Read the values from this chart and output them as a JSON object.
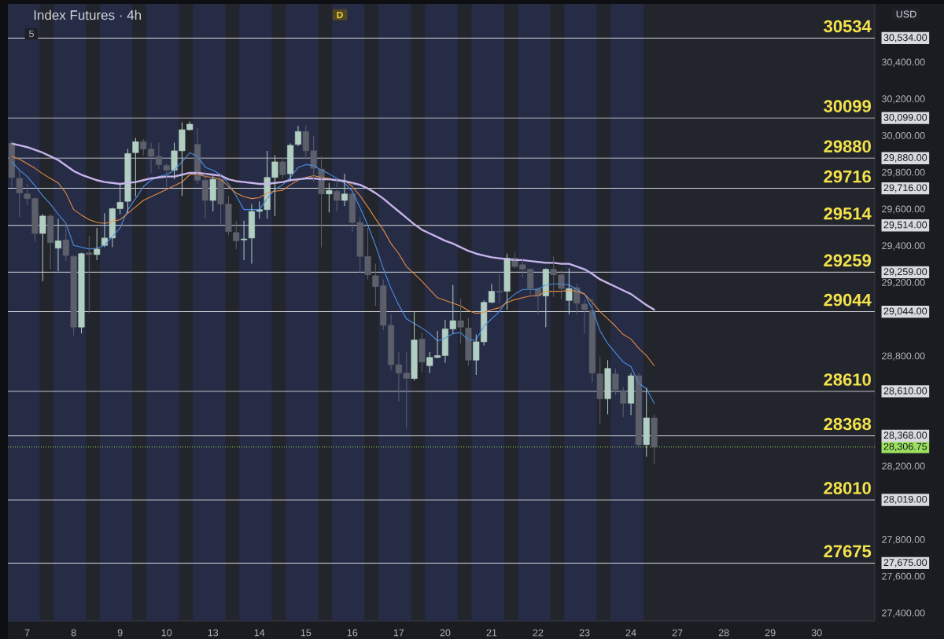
{
  "chart_data": {
    "type": "candlestick",
    "title": "Index Futures · 4h",
    "categories": [
      null,
      null,
      "7",
      null,
      null,
      null,
      null,
      null,
      "8",
      null,
      null,
      null,
      null,
      null,
      "9",
      null,
      null,
      null,
      null,
      null,
      "10",
      null,
      null,
      null,
      null,
      null,
      "13",
      null,
      null,
      null,
      null,
      null,
      "14",
      null,
      null,
      null,
      null,
      null,
      "15",
      null,
      null,
      null,
      null,
      null,
      "16",
      null,
      null,
      null,
      null,
      null,
      "17",
      null,
      null,
      null,
      null,
      null,
      "20",
      null,
      null,
      null,
      null,
      null,
      "21",
      null,
      null,
      null,
      null,
      null,
      "22",
      null,
      null,
      null,
      null,
      null,
      "23",
      null,
      null,
      null,
      null,
      null,
      "24",
      null,
      null,
      null,
      null,
      null,
      "27",
      null,
      null,
      null,
      null,
      null,
      "28",
      null,
      null,
      null,
      null,
      null,
      "29",
      null,
      null,
      null,
      null,
      null,
      "30",
      null,
      null,
      null,
      null,
      null,
      null,
      null
    ],
    "ohlc": [
      [
        29960,
        29970,
        29720,
        29775
      ],
      [
        29770,
        29815,
        29560,
        29690
      ],
      [
        29685,
        29740,
        29625,
        29660
      ],
      [
        29660,
        29665,
        29425,
        29470
      ],
      [
        29470,
        29575,
        29210,
        29565
      ],
      [
        29565,
        29575,
        29275,
        29420
      ],
      [
        29390,
        29550,
        29265,
        29430
      ],
      [
        29435,
        29530,
        29320,
        29350
      ],
      [
        29345,
        29350,
        28915,
        28960
      ],
      [
        28960,
        29365,
        28925,
        29360
      ],
      [
        29365,
        29455,
        29035,
        29355
      ],
      [
        29355,
        29500,
        29325,
        29385
      ],
      [
        29405,
        29580,
        29395,
        29445
      ],
      [
        29445,
        29610,
        29395,
        29605
      ],
      [
        29605,
        29745,
        29575,
        29640
      ],
      [
        29645,
        29930,
        29580,
        29905
      ],
      [
        29910,
        29990,
        29670,
        29970
      ],
      [
        29970,
        29985,
        29895,
        29930
      ],
      [
        29930,
        29965,
        29800,
        29890
      ],
      [
        29890,
        29965,
        29820,
        29845
      ],
      [
        29840,
        29850,
        29715,
        29815
      ],
      [
        29815,
        29965,
        29765,
        29920
      ],
      [
        29920,
        30075,
        29675,
        30035
      ],
      [
        30035,
        30080,
        30030,
        30065
      ],
      [
        29955,
        30045,
        29740,
        29760
      ],
      [
        29760,
        29810,
        29550,
        29650
      ],
      [
        29650,
        29790,
        29590,
        29765
      ],
      [
        29765,
        29795,
        29515,
        29630
      ],
      [
        29630,
        29675,
        29460,
        29480
      ],
      [
        29475,
        29540,
        29385,
        29430
      ],
      [
        29435,
        29540,
        29325,
        29440
      ],
      [
        29445,
        29630,
        29305,
        29590
      ],
      [
        29590,
        29645,
        29550,
        29600
      ],
      [
        29600,
        29920,
        29550,
        29775
      ],
      [
        29775,
        29895,
        29565,
        29860
      ],
      [
        29860,
        29880,
        29765,
        29790
      ],
      [
        29795,
        29960,
        29765,
        29950
      ],
      [
        29955,
        30055,
        29945,
        30025
      ],
      [
        30025,
        30060,
        29875,
        29920
      ],
      [
        29920,
        30000,
        29750,
        29825
      ],
      [
        29820,
        29890,
        29395,
        29685
      ],
      [
        29685,
        29745,
        29585,
        29705
      ],
      [
        29700,
        29765,
        29590,
        29650
      ],
      [
        29650,
        29795,
        29620,
        29685
      ],
      [
        29685,
        29745,
        29480,
        29530
      ],
      [
        29530,
        29560,
        29255,
        29345
      ],
      [
        29345,
        29500,
        29220,
        29245
      ],
      [
        29240,
        29305,
        29075,
        29180
      ],
      [
        29185,
        29220,
        28945,
        28970
      ],
      [
        28970,
        29030,
        28725,
        28755
      ],
      [
        28755,
        28825,
        28555,
        28710
      ],
      [
        28710,
        28825,
        28410,
        28680
      ],
      [
        28680,
        29045,
        28670,
        28890
      ],
      [
        28895,
        28930,
        28715,
        28770
      ],
      [
        28750,
        28825,
        28710,
        28795
      ],
      [
        28795,
        28940,
        28790,
        28805
      ],
      [
        28805,
        29000,
        28765,
        28950
      ],
      [
        28950,
        29190,
        28925,
        28995
      ],
      [
        28995,
        29115,
        28870,
        28960
      ],
      [
        28955,
        29010,
        28750,
        28780
      ],
      [
        28780,
        28920,
        28700,
        28880
      ],
      [
        28880,
        29105,
        28860,
        29095
      ],
      [
        29095,
        29195,
        29090,
        29155
      ],
      [
        29155,
        29250,
        29090,
        29150
      ],
      [
        29155,
        29360,
        29055,
        29335
      ],
      [
        29335,
        29365,
        29280,
        29290
      ],
      [
        29300,
        29330,
        29230,
        29275
      ],
      [
        29275,
        29280,
        29140,
        29170
      ],
      [
        29170,
        29175,
        29030,
        29130
      ],
      [
        29130,
        29280,
        28960,
        29275
      ],
      [
        29275,
        29345,
        29125,
        29245
      ],
      [
        29245,
        29270,
        29115,
        29170
      ],
      [
        29105,
        29280,
        29030,
        29170
      ],
      [
        29175,
        29195,
        29030,
        29090
      ],
      [
        29085,
        29110,
        28925,
        29055
      ],
      [
        29050,
        29115,
        28660,
        28710
      ],
      [
        28705,
        28800,
        28430,
        28570
      ],
      [
        28570,
        28780,
        28485,
        28735
      ],
      [
        28705,
        28735,
        28590,
        28620
      ],
      [
        28610,
        28635,
        28470,
        28545
      ],
      [
        28545,
        28710,
        28480,
        28695
      ],
      [
        28695,
        28710,
        28310,
        28320
      ],
      [
        28320,
        28630,
        28255,
        28465
      ],
      [
        28465,
        28485,
        28215,
        28306.75
      ],
      null,
      null,
      null,
      null,
      null,
      null,
      null,
      null,
      null,
      null,
      null,
      null,
      null,
      null,
      null,
      null,
      null,
      null,
      null,
      null,
      null,
      null,
      null,
      null,
      null,
      null,
      null,
      null
    ],
    "colors": [
      "#5d606a",
      "#5d606a",
      "#5d606a",
      "#5d606a",
      "#b2cec2",
      "#5d606a",
      "#b2cec2",
      "#5d606a",
      "#5d606a",
      "#b2cec2",
      "#5d606a",
      "#b2cec2",
      "#b2cec2",
      "#b2cec2",
      "#b2cec2",
      "#b2cec2",
      "#b2cec2",
      "#5d606a",
      "#5d606a",
      "#5d606a",
      "#5d606a",
      "#b2cec2",
      "#b2cec2",
      "#b2cec2",
      "#5d606a",
      "#5d606a",
      "#b2cec2",
      "#5d606a",
      "#5d606a",
      "#5d606a",
      "#b2cec2",
      "#b2cec2",
      "#b2cec2",
      "#b2cec2",
      "#b2cec2",
      "#5d606a",
      "#b2cec2",
      "#b2cec2",
      "#5d606a",
      "#5d606a",
      "#5d606a",
      "#b2cec2",
      "#5d606a",
      "#b2cec2",
      "#5d606a",
      "#5d606a",
      "#5d606a",
      "#5d606a",
      "#5d606a",
      "#5d606a",
      "#5d606a",
      "#5d606a",
      "#b2cec2",
      "#5d606a",
      "#b2cec2",
      "#b2cec2",
      "#b2cec2",
      "#b2cec2",
      "#5d606a",
      "#5d606a",
      "#b2cec2",
      "#b2cec2",
      "#b2cec2",
      "#5d606a",
      "#b2cec2",
      "#5d606a",
      "#5d606a",
      "#5d606a",
      "#5d606a",
      "#b2cec2",
      "#5d606a",
      "#5d606a",
      "#b2cec2",
      "#5d606a",
      "#5d606a",
      "#5d606a",
      "#5d606a",
      "#b2cec2",
      "#5d606a",
      "#5d606a",
      "#b2cec2",
      "#5d606a",
      "#b2cec2",
      "#5d606a",
      null,
      null,
      null,
      null,
      null,
      null,
      null,
      null,
      null,
      null,
      null,
      null,
      null,
      null,
      null,
      null,
      null,
      null,
      null,
      null,
      null,
      null,
      null,
      null,
      null,
      null,
      null,
      null
    ],
    "series": [
      {
        "type": "line",
        "color": "#4a8fe6",
        "values": [
          29860,
          29815,
          29780,
          29730,
          29675,
          29630,
          29575,
          29525,
          29405,
          29395,
          29385,
          29390,
          29405,
          29455,
          29500,
          29600,
          29660,
          29725,
          29760,
          29780,
          29790,
          29815,
          29860,
          29910,
          29890,
          29830,
          29815,
          29790,
          29740,
          29675,
          29600,
          29600,
          29600,
          29660,
          29710,
          29735,
          29775,
          29830,
          29845,
          29840,
          29815,
          29795,
          29770,
          29745,
          29700,
          29610,
          29515,
          29405,
          29280,
          29170,
          29080,
          29005,
          28980,
          28955,
          28925,
          28885,
          28900,
          28925,
          28930,
          28890,
          28890,
          28965,
          29005,
          29045,
          29105,
          29140,
          29165,
          29165,
          29165,
          29190,
          29195,
          29195,
          29190,
          29165,
          29140,
          29060,
          28940,
          28870,
          28820,
          28770,
          28745,
          28655,
          28625,
          28545,
          null,
          null,
          null,
          null,
          null,
          null,
          null,
          null,
          null,
          null,
          null,
          null,
          null,
          null,
          null,
          null,
          null,
          null,
          null,
          null,
          null,
          null,
          null,
          null,
          null,
          null,
          null,
          null
        ]
      },
      {
        "type": "line",
        "color": "#e38a3f",
        "values": [
          29890,
          29875,
          29850,
          29825,
          29795,
          29770,
          29745,
          29690,
          29600,
          29570,
          29545,
          29530,
          29525,
          29535,
          29545,
          29580,
          29615,
          29650,
          29670,
          29690,
          29710,
          29730,
          29750,
          29790,
          29795,
          29780,
          29775,
          29765,
          29725,
          29690,
          29670,
          29660,
          29665,
          29690,
          29700,
          29705,
          29735,
          29760,
          29775,
          29785,
          29775,
          29770,
          29760,
          29760,
          29725,
          29675,
          29615,
          29550,
          29490,
          29415,
          29360,
          29290,
          29250,
          29210,
          29165,
          29120,
          29105,
          29090,
          29075,
          29050,
          29035,
          29040,
          29055,
          29065,
          29095,
          29110,
          29120,
          29130,
          29130,
          29155,
          29155,
          29155,
          29160,
          29155,
          29140,
          29095,
          29045,
          29005,
          28965,
          28920,
          28895,
          28845,
          28805,
          28750,
          null,
          null,
          null,
          null,
          null,
          null,
          null,
          null,
          null,
          null,
          null,
          null,
          null,
          null,
          null,
          null,
          null,
          null,
          null,
          null,
          null,
          null,
          null,
          null,
          null,
          null,
          null,
          null
        ]
      },
      {
        "type": "line",
        "color": "#c6b4ea",
        "values": [
          29960,
          29950,
          29940,
          29925,
          29910,
          29890,
          29870,
          29840,
          29810,
          29790,
          29775,
          29760,
          29750,
          29745,
          29740,
          29745,
          29750,
          29760,
          29770,
          29775,
          29780,
          29780,
          29790,
          29800,
          29800,
          29795,
          29790,
          29785,
          29765,
          29755,
          29750,
          29745,
          29740,
          29740,
          29745,
          29750,
          29760,
          29765,
          29770,
          29770,
          29765,
          29765,
          29760,
          29755,
          29745,
          29735,
          29715,
          29690,
          29660,
          29625,
          29590,
          29555,
          29520,
          29490,
          29470,
          29450,
          29430,
          29415,
          29395,
          29375,
          29360,
          29350,
          29340,
          29335,
          29330,
          29325,
          29325,
          29320,
          29315,
          29310,
          29310,
          29305,
          29305,
          29290,
          29275,
          29250,
          29220,
          29200,
          29180,
          29160,
          29140,
          29110,
          29080,
          29055,
          null,
          null,
          null,
          null,
          null,
          null,
          null,
          null,
          null,
          null,
          null,
          null,
          null,
          null,
          null,
          null,
          null,
          null,
          null,
          null,
          null,
          null,
          null,
          null,
          null,
          null,
          null,
          null
        ]
      }
    ],
    "ylim": [
      27360,
      30720
    ],
    "yticks": [
      {
        "value": 27400,
        "label": "27,400.00"
      },
      {
        "value": 27600,
        "label": "27,600.00"
      },
      {
        "value": 27675,
        "label": "27,675.00"
      },
      {
        "value": 27800,
        "label": "27,800.00"
      },
      {
        "value": 28019,
        "label": "28,019.00"
      },
      {
        "value": 28200,
        "label": "28,200.00"
      },
      {
        "value": 28306.75,
        "label": "28,306.75"
      },
      {
        "value": 28368,
        "label": "28,368.00"
      },
      {
        "value": 28610,
        "label": "28,610.00"
      },
      {
        "value": 28800,
        "label": "28,800.00"
      },
      {
        "value": 29044,
        "label": "29,044.00"
      },
      {
        "value": 29200,
        "label": "29,200.00"
      },
      {
        "value": 29259,
        "label": "29,259.00"
      },
      {
        "value": 29400,
        "label": "29,400.00"
      },
      {
        "value": 29514,
        "label": "29,514.00"
      },
      {
        "value": 29600,
        "label": "29,600.00"
      },
      {
        "value": 29716,
        "label": "29,716.00"
      },
      {
        "value": 29800,
        "label": "29,800.00"
      },
      {
        "value": 29880,
        "label": "29,880.00"
      },
      {
        "value": 30000,
        "label": "30,000.00"
      },
      {
        "value": 30099,
        "label": "30,099.00"
      },
      {
        "value": 30200,
        "label": "30,200.00"
      },
      {
        "value": 30400,
        "label": "30,400.00"
      },
      {
        "value": 30534,
        "label": "30,534.00"
      }
    ],
    "ref_lines": [
      {
        "axis": "y",
        "value": 30534,
        "label": "30534",
        "color": "#d9dadf"
      },
      {
        "axis": "y",
        "value": 30099,
        "label": "30099",
        "color": "#d9dadf"
      },
      {
        "axis": "y",
        "value": 29880,
        "label": "29880",
        "color": "#d9dadf"
      },
      {
        "axis": "y",
        "value": 29716,
        "label": "29716",
        "color": "#d9dadf"
      },
      {
        "axis": "y",
        "value": 29514,
        "label": "29514",
        "color": "#d9dadf"
      },
      {
        "axis": "y",
        "value": 29259,
        "label": "29259",
        "color": "#d9dadf"
      },
      {
        "axis": "y",
        "value": 29044,
        "label": "29044",
        "color": "#d9dadf"
      },
      {
        "axis": "y",
        "value": 28610,
        "label": "28610",
        "color": "#d9dadf"
      },
      {
        "axis": "y",
        "value": 28368,
        "label": "28368",
        "color": "#d9dadf"
      },
      {
        "axis": "y",
        "value": 28019,
        "color": "#d9dadf"
      },
      {
        "axis": "y",
        "value": 27675,
        "label": "27675",
        "color": "#d9dadf"
      },
      {
        "axis": "y",
        "value": 28306.75,
        "color": "#9be15d",
        "line_style": "dotted"
      }
    ],
    "annotations": [
      "5",
      "D",
      "USD",
      {
        "text": "28010",
        "y": 28019
      }
    ]
  }
}
